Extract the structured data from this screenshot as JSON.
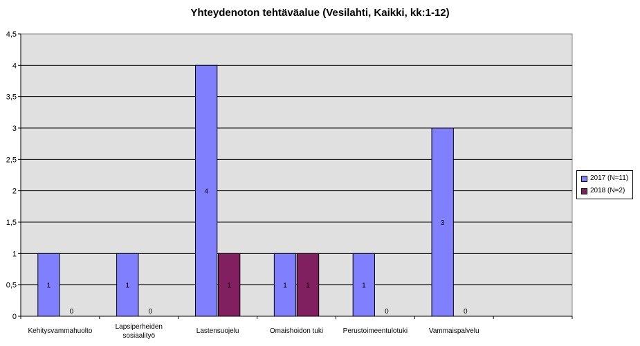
{
  "chart_data": {
    "type": "bar",
    "title": "Yhteydenoton tehtäväalue (Vesilahti, Kaikki, kk:1-12)",
    "xlabel": "",
    "ylabel": "",
    "ylim": [
      0,
      4.5
    ],
    "yticks": [
      "0",
      "0,5",
      "1",
      "1,5",
      "2",
      "2,5",
      "3",
      "3,5",
      "4",
      "4,5"
    ],
    "grid": true,
    "legend_position": "right",
    "categories": [
      [
        "Kehitysvammahuolto"
      ],
      [
        "Lapsiperheiden",
        "sosiaalityö"
      ],
      [
        "Lastensuojelu"
      ],
      [
        "Omaishoidon tuki"
      ],
      [
        "Perustoimeentulotuki"
      ],
      [
        "Vammaispalvelu"
      ],
      [
        ""
      ]
    ],
    "series": [
      {
        "name": "2017 (N=11)",
        "color": "#8080ff",
        "values": [
          1,
          1,
          4,
          1,
          1,
          3,
          null
        ],
        "labels": [
          "1",
          "1",
          "4",
          "1",
          "1",
          "3",
          ""
        ]
      },
      {
        "name": "2018 (N=2)",
        "color": "#802060",
        "values": [
          0,
          0,
          1,
          1,
          0,
          0,
          null
        ],
        "labels": [
          "0",
          "0",
          "1",
          "1",
          "0",
          "0",
          ""
        ]
      }
    ],
    "plot_background": "#e0e0e0"
  }
}
